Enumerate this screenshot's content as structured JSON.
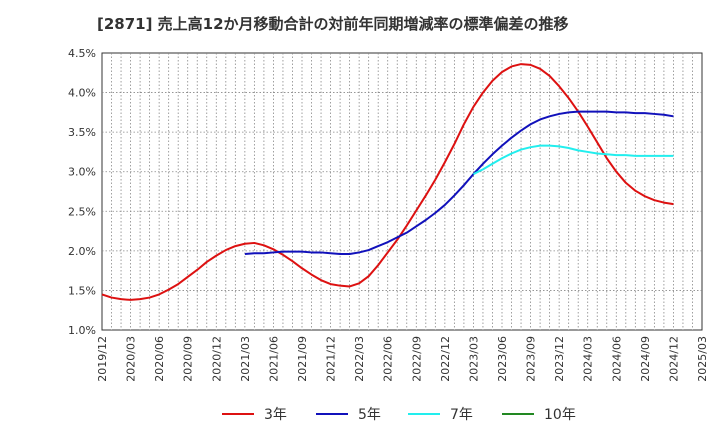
{
  "chart_data": {
    "type": "line",
    "title": "[2871]  売上高12か月移動合計の対前年同期増減率の標準偏差の推移",
    "xlabel": "",
    "ylabel": "",
    "ylim": [
      0.01,
      0.045
    ],
    "y_ticks": [
      0.01,
      0.015,
      0.02,
      0.025,
      0.03,
      0.035,
      0.04,
      0.045
    ],
    "y_tick_labels": [
      "1.0%",
      "1.5%",
      "2.0%",
      "2.5%",
      "3.0%",
      "3.5%",
      "4.0%",
      "4.5%"
    ],
    "x_range": [
      "2019-12",
      "2025-03"
    ],
    "x_tick_labels": [
      "2019/12",
      "2020/03",
      "2020/06",
      "2020/09",
      "2020/12",
      "2021/03",
      "2021/06",
      "2021/09",
      "2021/12",
      "2022/03",
      "2022/06",
      "2022/09",
      "2022/12",
      "2023/03",
      "2023/06",
      "2023/09",
      "2023/12",
      "2024/03",
      "2024/06",
      "2024/09",
      "2024/12",
      "2025/03"
    ],
    "grid": true,
    "legend_position": "bottom",
    "series": [
      {
        "name": "3年",
        "color": "#dd1111",
        "points": [
          [
            "2019-12",
            0.0145
          ],
          [
            "2020-01",
            0.0141
          ],
          [
            "2020-02",
            0.0139
          ],
          [
            "2020-03",
            0.0138
          ],
          [
            "2020-04",
            0.0139
          ],
          [
            "2020-05",
            0.0141
          ],
          [
            "2020-06",
            0.0145
          ],
          [
            "2020-07",
            0.0151
          ],
          [
            "2020-08",
            0.0158
          ],
          [
            "2020-09",
            0.0167
          ],
          [
            "2020-10",
            0.0176
          ],
          [
            "2020-11",
            0.0186
          ],
          [
            "2020-12",
            0.0194
          ],
          [
            "2021-01",
            0.0201
          ],
          [
            "2021-02",
            0.0206
          ],
          [
            "2021-03",
            0.0209
          ],
          [
            "2021-04",
            0.021
          ],
          [
            "2021-05",
            0.0207
          ],
          [
            "2021-06",
            0.0202
          ],
          [
            "2021-07",
            0.0195
          ],
          [
            "2021-08",
            0.0187
          ],
          [
            "2021-09",
            0.0178
          ],
          [
            "2021-10",
            0.017
          ],
          [
            "2021-11",
            0.0163
          ],
          [
            "2021-12",
            0.0158
          ],
          [
            "2022-01",
            0.0156
          ],
          [
            "2022-02",
            0.0155
          ],
          [
            "2022-03",
            0.0159
          ],
          [
            "2022-04",
            0.0168
          ],
          [
            "2022-05",
            0.0182
          ],
          [
            "2022-06",
            0.0198
          ],
          [
            "2022-07",
            0.0214
          ],
          [
            "2022-08",
            0.0232
          ],
          [
            "2022-09",
            0.0251
          ],
          [
            "2022-10",
            0.027
          ],
          [
            "2022-11",
            0.029
          ],
          [
            "2022-12",
            0.0312
          ],
          [
            "2023-01",
            0.0335
          ],
          [
            "2023-02",
            0.036
          ],
          [
            "2023-03",
            0.0382
          ],
          [
            "2023-04",
            0.04
          ],
          [
            "2023-05",
            0.0415
          ],
          [
            "2023-06",
            0.0426
          ],
          [
            "2023-07",
            0.0433
          ],
          [
            "2023-08",
            0.0436
          ],
          [
            "2023-09",
            0.0435
          ],
          [
            "2023-10",
            0.043
          ],
          [
            "2023-11",
            0.0421
          ],
          [
            "2023-12",
            0.0408
          ],
          [
            "2024-01",
            0.0393
          ],
          [
            "2024-02",
            0.0376
          ],
          [
            "2024-03",
            0.0357
          ],
          [
            "2024-04",
            0.0337
          ],
          [
            "2024-05",
            0.0317
          ],
          [
            "2024-06",
            0.03
          ],
          [
            "2024-07",
            0.0286
          ],
          [
            "2024-08",
            0.0276
          ],
          [
            "2024-09",
            0.0269
          ],
          [
            "2024-10",
            0.0264
          ],
          [
            "2024-11",
            0.0261
          ],
          [
            "2024-12",
            0.0259
          ]
        ]
      },
      {
        "name": "5年",
        "color": "#1111bb",
        "points": [
          [
            "2021-03",
            0.0196
          ],
          [
            "2021-04",
            0.0197
          ],
          [
            "2021-05",
            0.0197
          ],
          [
            "2021-06",
            0.0198
          ],
          [
            "2021-07",
            0.0199
          ],
          [
            "2021-08",
            0.0199
          ],
          [
            "2021-09",
            0.0199
          ],
          [
            "2021-10",
            0.0198
          ],
          [
            "2021-11",
            0.0198
          ],
          [
            "2021-12",
            0.0197
          ],
          [
            "2022-01",
            0.0196
          ],
          [
            "2022-02",
            0.0196
          ],
          [
            "2022-03",
            0.0198
          ],
          [
            "2022-04",
            0.0201
          ],
          [
            "2022-05",
            0.0206
          ],
          [
            "2022-06",
            0.0211
          ],
          [
            "2022-07",
            0.0217
          ],
          [
            "2022-08",
            0.0223
          ],
          [
            "2022-09",
            0.0231
          ],
          [
            "2022-10",
            0.0239
          ],
          [
            "2022-11",
            0.0248
          ],
          [
            "2022-12",
            0.0258
          ],
          [
            "2023-01",
            0.027
          ],
          [
            "2023-02",
            0.0283
          ],
          [
            "2023-03",
            0.0297
          ],
          [
            "2023-04",
            0.031
          ],
          [
            "2023-05",
            0.0322
          ],
          [
            "2023-06",
            0.0333
          ],
          [
            "2023-07",
            0.0343
          ],
          [
            "2023-08",
            0.0352
          ],
          [
            "2023-09",
            0.036
          ],
          [
            "2023-10",
            0.0366
          ],
          [
            "2023-11",
            0.037
          ],
          [
            "2023-12",
            0.0373
          ],
          [
            "2024-01",
            0.0375
          ],
          [
            "2024-02",
            0.0376
          ],
          [
            "2024-03",
            0.0376
          ],
          [
            "2024-04",
            0.0376
          ],
          [
            "2024-05",
            0.0376
          ],
          [
            "2024-06",
            0.0375
          ],
          [
            "2024-07",
            0.0375
          ],
          [
            "2024-08",
            0.0374
          ],
          [
            "2024-09",
            0.0374
          ],
          [
            "2024-10",
            0.0373
          ],
          [
            "2024-11",
            0.0372
          ],
          [
            "2024-12",
            0.037
          ]
        ]
      },
      {
        "name": "7年",
        "color": "#22eeee",
        "points": [
          [
            "2023-03",
            0.0297
          ],
          [
            "2023-04",
            0.0303
          ],
          [
            "2023-05",
            0.031
          ],
          [
            "2023-06",
            0.0317
          ],
          [
            "2023-07",
            0.0323
          ],
          [
            "2023-08",
            0.0328
          ],
          [
            "2023-09",
            0.0331
          ],
          [
            "2023-10",
            0.0333
          ],
          [
            "2023-11",
            0.0333
          ],
          [
            "2023-12",
            0.0332
          ],
          [
            "2024-01",
            0.033
          ],
          [
            "2024-02",
            0.0327
          ],
          [
            "2024-03",
            0.0325
          ],
          [
            "2024-04",
            0.0323
          ],
          [
            "2024-05",
            0.0322
          ],
          [
            "2024-06",
            0.0321
          ],
          [
            "2024-07",
            0.0321
          ],
          [
            "2024-08",
            0.032
          ],
          [
            "2024-09",
            0.032
          ],
          [
            "2024-10",
            0.032
          ],
          [
            "2024-11",
            0.032
          ],
          [
            "2024-12",
            0.032
          ]
        ]
      },
      {
        "name": "10年",
        "color": "#228822",
        "points": []
      }
    ]
  }
}
